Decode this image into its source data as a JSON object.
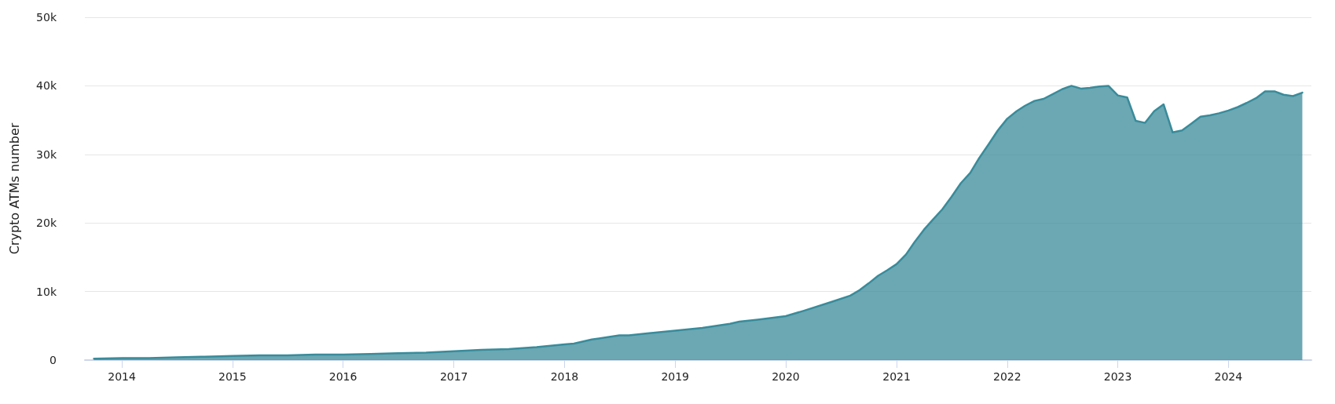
{
  "chart_data": {
    "type": "area",
    "ylabel": "Crypto ATMs number",
    "x": [
      "2013-10",
      "2014-01",
      "2014-04",
      "2014-07",
      "2014-10",
      "2015-01",
      "2015-04",
      "2015-07",
      "2015-10",
      "2016-01",
      "2016-04",
      "2016-07",
      "2016-10",
      "2017-01",
      "2017-04",
      "2017-07",
      "2017-10",
      "2018-01",
      "2018-02",
      "2018-04",
      "2018-07",
      "2018-08",
      "2018-10",
      "2019-01",
      "2019-04",
      "2019-07",
      "2019-08",
      "2019-10",
      "2020-01",
      "2020-03",
      "2020-06",
      "2020-08",
      "2020-09",
      "2020-10",
      "2020-11",
      "2020-12",
      "2021-01",
      "2021-02",
      "2021-03",
      "2021-04",
      "2021-05",
      "2021-06",
      "2021-07",
      "2021-08",
      "2021-09",
      "2021-10",
      "2021-11",
      "2021-12",
      "2022-01",
      "2022-02",
      "2022-03",
      "2022-04",
      "2022-05",
      "2022-06",
      "2022-07",
      "2022-08",
      "2022-09",
      "2022-10",
      "2022-11",
      "2022-12",
      "2023-01",
      "2023-02",
      "2023-03",
      "2023-04",
      "2023-05",
      "2023-06",
      "2023-07",
      "2023-08",
      "2023-09",
      "2023-10",
      "2023-11",
      "2023-12",
      "2024-01",
      "2024-02",
      "2024-03",
      "2024-04",
      "2024-05",
      "2024-06",
      "2024-07",
      "2024-08",
      "2024-09"
    ],
    "series": [
      {
        "color": "#3a8b9a",
        "values": [
          200,
          300,
          300,
          400,
          500,
          600,
          700,
          700,
          800,
          800,
          900,
          1000,
          1100,
          1300,
          1500,
          1600,
          1900,
          2300,
          2400,
          3000,
          3600,
          3600,
          3900,
          4300,
          4700,
          5300,
          5600,
          5900,
          6400,
          7200,
          8500,
          9400,
          10200,
          11200,
          12300,
          13100,
          14000,
          15400,
          17200,
          19000,
          20500,
          22000,
          23800,
          25800,
          27300,
          29500,
          31500,
          33500,
          35200,
          36300,
          37100,
          37800,
          38100,
          38800,
          39500,
          40000,
          39600,
          39700,
          39900,
          40000,
          38600,
          38300,
          34900,
          34600,
          36300,
          37300,
          33200,
          33500,
          34500,
          35500,
          35700,
          36000,
          36400,
          36900,
          37500,
          38200,
          39200,
          39200,
          38700,
          38500,
          39000
        ]
      }
    ],
    "xlim": [
      "2013-09",
      "2024-10"
    ],
    "xticks": [
      "2014",
      "2015",
      "2016",
      "2017",
      "2018",
      "2019",
      "2020",
      "2021",
      "2022",
      "2023",
      "2024"
    ],
    "ylim": [
      0,
      50000
    ],
    "yticks": [
      0,
      {
        "value": 10000,
        "label": "10k"
      },
      {
        "value": 20000,
        "label": "20k"
      },
      {
        "value": 30000,
        "label": "30k"
      },
      {
        "value": 40000,
        "label": "40k"
      },
      {
        "value": 50000,
        "label": "50k"
      }
    ],
    "grid": "y",
    "marker": "none",
    "line_style": "solid"
  }
}
